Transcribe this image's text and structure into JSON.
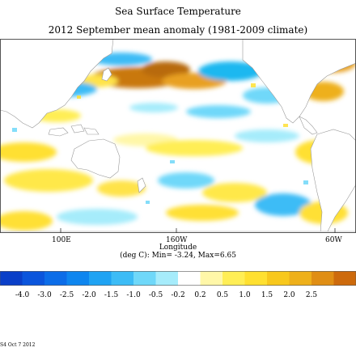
{
  "title": "Sea Surface Temperature",
  "subtitle": "2012 September mean anomaly (1981-2009 climate)",
  "map": {
    "type": "heatmap",
    "projection": "equirectangular, Pacific-centred",
    "x_ticks": [
      "100E",
      "160W",
      "60W"
    ],
    "xlabel": "Longitude",
    "units_line": "(deg C): Min= -3.24, Max=6.65",
    "land_color": "#ffffff",
    "coast_color": "#9a9a9a",
    "regions": [
      {
        "area": "North Pacific central band",
        "anomaly": "warm (+1.0 to +2.0)",
        "color": "#c9780d"
      },
      {
        "area": "North Pacific south of warm band",
        "anomaly": "cool (-1.0 to -2.0)",
        "color": "#1fb8f0"
      },
      {
        "area": "Equatorial Pacific",
        "anomaly": "mixed weak warm (+0.2 to +1.0)",
        "color": "#ffe84a"
      },
      {
        "area": "Indian Ocean",
        "anomaly": "warm (+0.5 to +1.0)",
        "color": "#ffe34a"
      },
      {
        "area": "North Atlantic",
        "anomaly": "warm (+1.0 to +2.5)",
        "color": "#e8a020"
      }
    ]
  },
  "colorbar": {
    "labels": [
      "-4.0",
      "-3.0",
      "-2.5",
      "-2.0",
      "-1.5",
      "-1.0",
      "-0.5",
      "-0.2",
      "0.2",
      "0.5",
      "1.0",
      "1.5",
      "2.0",
      "2.5"
    ],
    "colors": [
      "#0a3fc8",
      "#0b55dc",
      "#0c6de8",
      "#0e86ef",
      "#1fa3f3",
      "#3cbcf6",
      "#6fd8f9",
      "#a6ecfb",
      "#ffffff",
      "#fff7a8",
      "#ffee55",
      "#ffe030",
      "#f8c81c",
      "#eeb01a",
      "#e08e14",
      "#cd6a0c"
    ]
  },
  "footer": "S4 Oct 7 2012"
}
